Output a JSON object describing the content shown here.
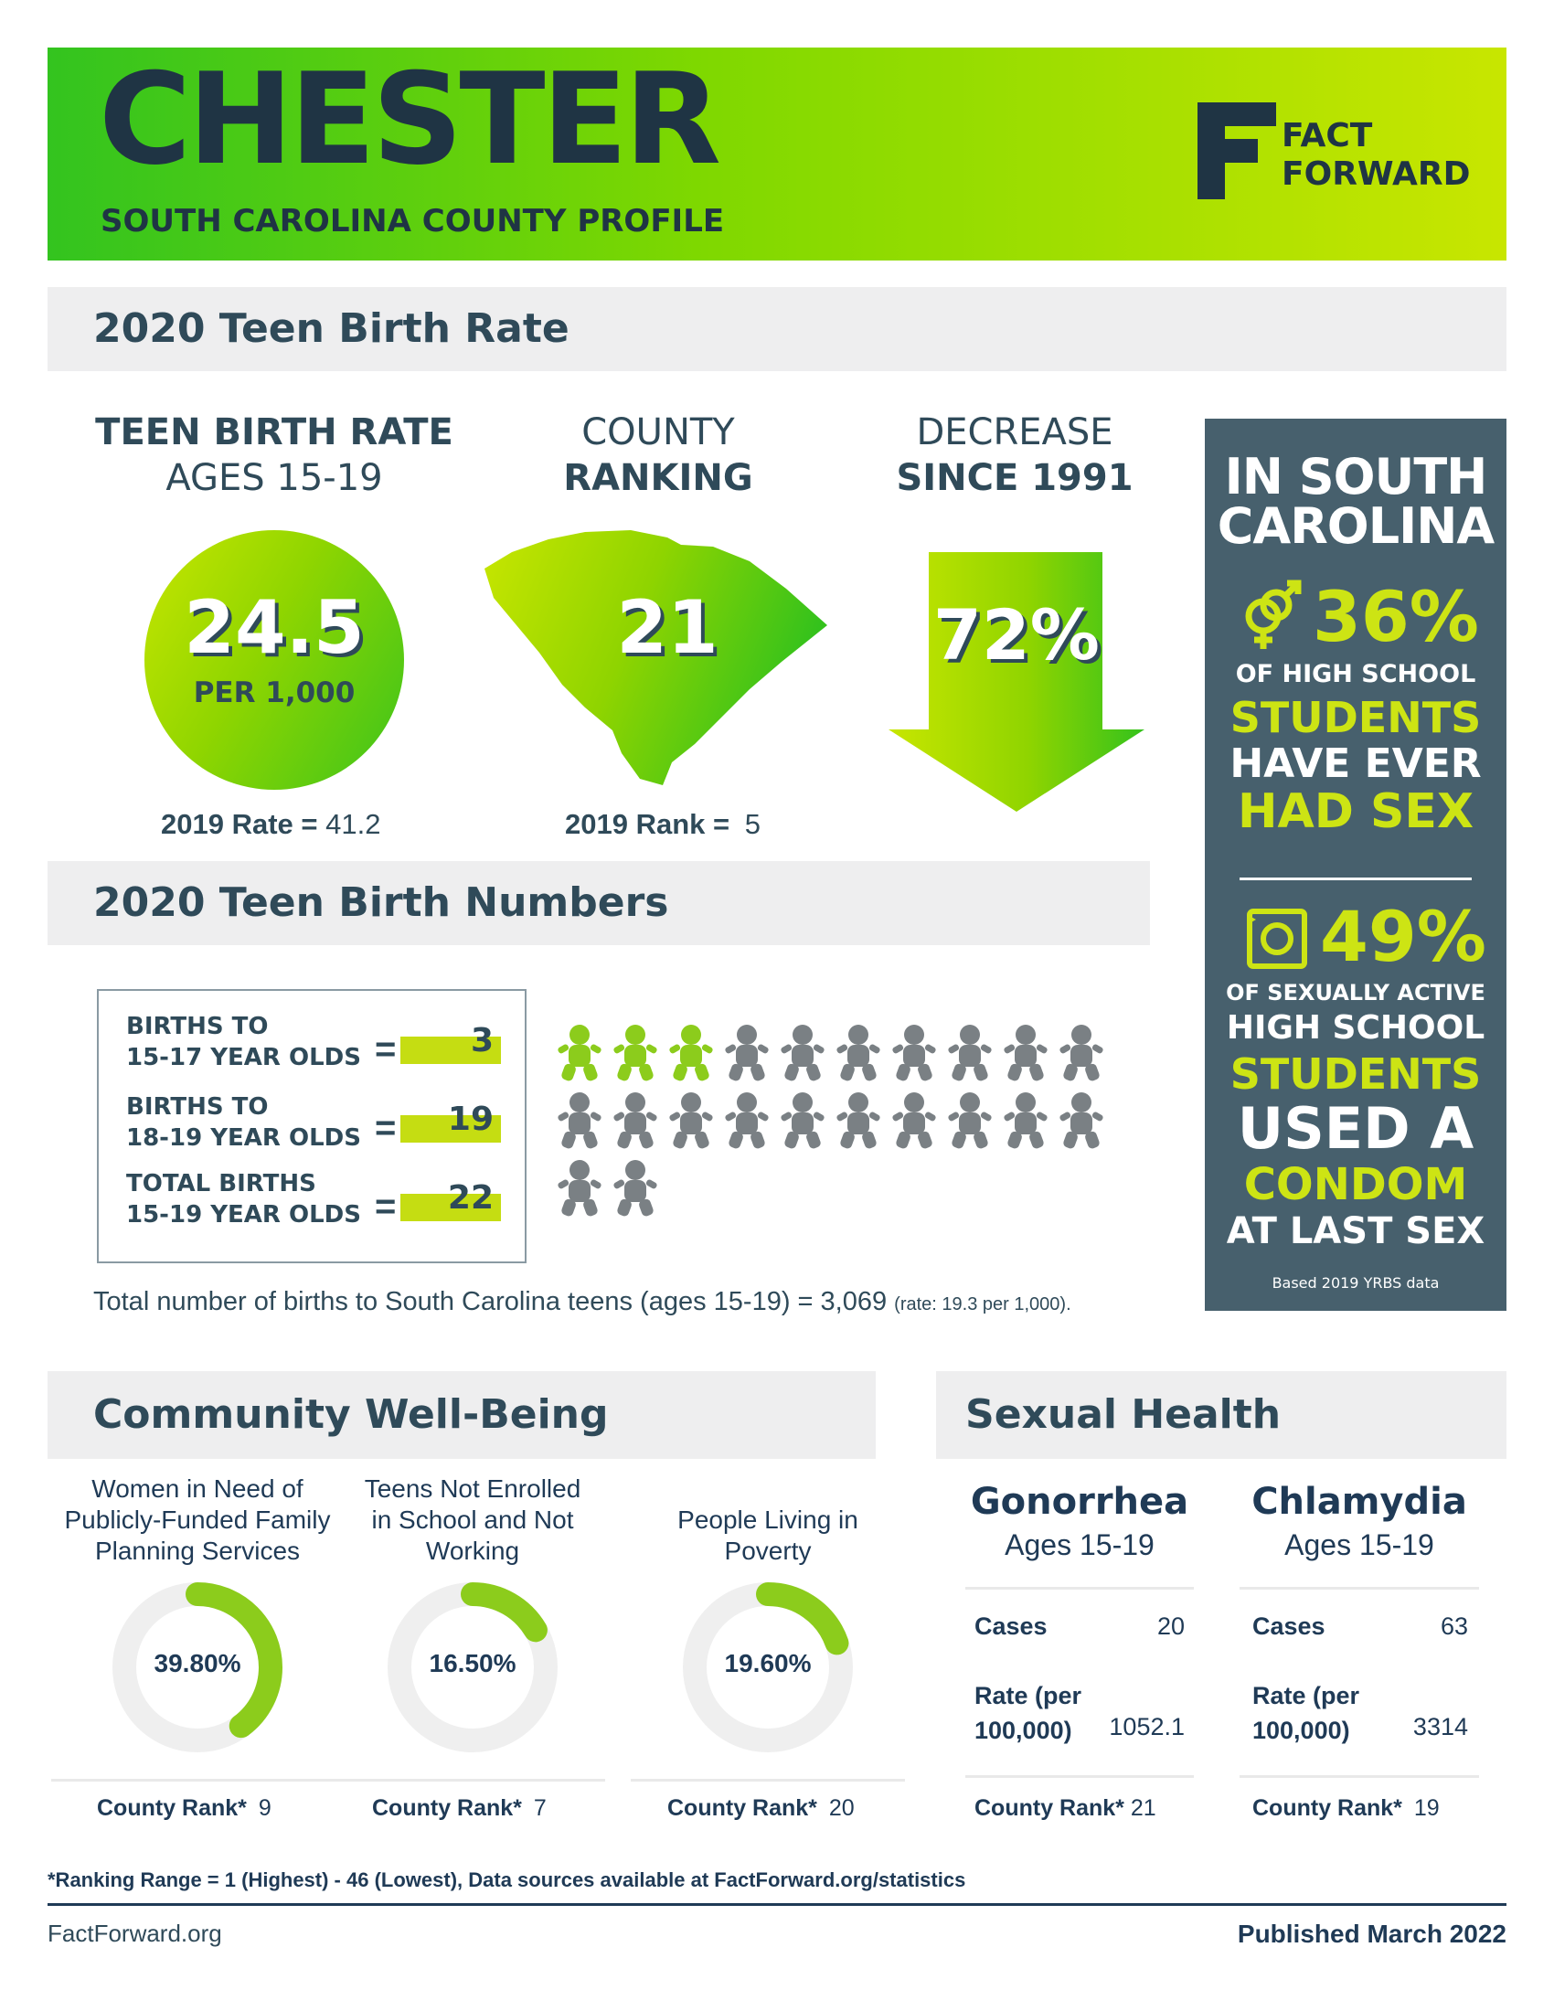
{
  "header": {
    "county": "CHESTER",
    "subtitle": "SOUTH CAROLINA COUNTY PROFILE",
    "logo_line1": "FACT",
    "logo_line2": "FORWARD"
  },
  "teen_birth_rate": {
    "section_title": "2020 Teen Birth Rate",
    "rate_head_line1": "TEEN BIRTH RATE",
    "rate_head_line2": "AGES 15-19",
    "rate_value": "24.5",
    "rate_unit": "PER 1,000",
    "prev_rate_label": "2019 Rate =",
    "prev_rate_value": "41.2",
    "rank_head_line1": "COUNTY",
    "rank_head_line2": "RANKING",
    "rank_value": "21",
    "prev_rank_label": "2019 Rank =",
    "prev_rank_value": "5",
    "decrease_head_line1": "DECREASE",
    "decrease_head_line2": "SINCE 1991",
    "decrease_value": "72%"
  },
  "sidebar": {
    "title_line1": "IN SOUTH",
    "title_line2": "CAROLINA",
    "stat1_value": "36%",
    "stat1_line1": "OF HIGH SCHOOL",
    "stat1_line2": "STUDENTS",
    "stat1_line3": "HAVE EVER",
    "stat1_line4": "HAD SEX",
    "stat2_value": "49%",
    "stat2_line1": "OF SEXUALLY ACTIVE",
    "stat2_line2": "HIGH SCHOOL",
    "stat2_line3": "STUDENTS",
    "stat2_line4": "USED A",
    "stat2_line5": "CONDOM",
    "stat2_line6": "AT LAST SEX",
    "source": "Based 2019 YRBS data",
    "icon1": "gender-icon",
    "icon2": "condom-icon"
  },
  "teen_birth_numbers": {
    "section_title": "2020 Teen Birth Numbers",
    "rows": [
      {
        "line1": "BIRTHS TO",
        "line2": "15-17 YEAR OLDS",
        "eq": "=",
        "value": "3"
      },
      {
        "line1": "BIRTHS TO",
        "line2": "18-19 YEAR OLDS",
        "eq": "=",
        "value": "19"
      },
      {
        "line1": "TOTAL BIRTHS",
        "line2": "15-19 YEAR OLDS",
        "eq": "=",
        "value": "22"
      }
    ],
    "baby_icons": {
      "total": 22,
      "highlighted": 3,
      "highlight_color": "#8ccc1c",
      "default_color": "#7a8084"
    },
    "state_total_text": "Total number of births to South Carolina teens (ages 15-19) = 3,069",
    "state_rate_text": "(rate: 19.3 per 1,000)."
  },
  "community": {
    "section_title": "Community Well-Being",
    "items": [
      {
        "title_line1": "Women in Need of",
        "title_line2": "Publicly-Funded Family",
        "title_line3": "Planning Services",
        "value": "39.80%",
        "fraction": 0.398,
        "rank_label": "County Rank*",
        "rank_value": "9"
      },
      {
        "title_line1": "Teens Not Enrolled",
        "title_line2": "in School and Not",
        "title_line3": "Working",
        "value": "16.50%",
        "fraction": 0.165,
        "rank_label": "County Rank*",
        "rank_value": "7"
      },
      {
        "title_line1": "People Living in",
        "title_line2": "Poverty",
        "title_line3": "",
        "value": "19.60%",
        "fraction": 0.196,
        "rank_label": "County Rank*",
        "rank_value": "20"
      }
    ]
  },
  "sexual_health": {
    "section_title": "Sexual Health",
    "items": [
      {
        "name": "Gonorrhea",
        "ages": "Ages 15-19",
        "cases_label": "Cases",
        "cases_value": "20",
        "rate_label_line1": "Rate (per",
        "rate_label_line2": "100,000)",
        "rate_value": "1052.1",
        "rank_label": "County Rank*",
        "rank_value": "21"
      },
      {
        "name": "Chlamydia",
        "ages": "Ages 15-19",
        "cases_label": "Cases",
        "cases_value": "63",
        "rate_label_line1": "Rate (per",
        "rate_label_line2": "100,000)",
        "rate_value": "3314",
        "rank_label": "County Rank*",
        "rank_value": "19"
      }
    ]
  },
  "footer": {
    "footnote": "*Ranking Range = 1 (Highest) - 46 (Lowest), Data sources available at FactForward.org/statistics",
    "site": "FactForward.org",
    "published": "Published March 2022"
  },
  "colors": {
    "accent_green": "#8ccc1c",
    "dark_navy": "#2f4a59",
    "sidebar_slate": "#47606d",
    "lime": "#cde414"
  }
}
